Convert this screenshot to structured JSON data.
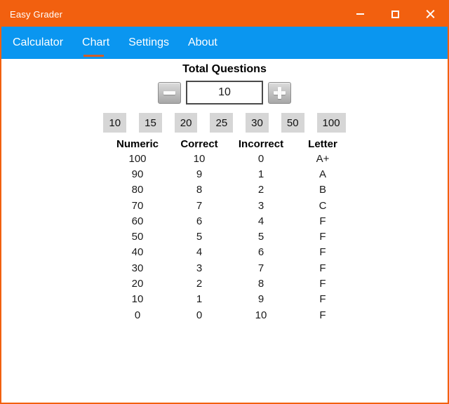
{
  "window": {
    "title": "Easy Grader",
    "controls": {
      "minimize": "minimize",
      "maximize": "maximize",
      "close": "close"
    }
  },
  "colors": {
    "titlebar_bg": "#F2600F",
    "nav_bg": "#0A96F0",
    "tab_underline": "#D25E28",
    "window_border": "#F2600F",
    "preset_button_bg": "#D6D6D6"
  },
  "nav": {
    "tabs": [
      {
        "label": "Calculator",
        "active": false
      },
      {
        "label": "Chart",
        "active": true
      },
      {
        "label": "Settings",
        "active": false
      },
      {
        "label": "About",
        "active": false
      }
    ]
  },
  "main": {
    "section_title": "Total Questions",
    "stepper": {
      "value": "10"
    },
    "quick_options": [
      "10",
      "15",
      "20",
      "25",
      "30",
      "50",
      "100"
    ],
    "grade_table": {
      "headers": [
        "Numeric",
        "Correct",
        "Incorrect",
        "Letter"
      ],
      "rows": [
        [
          "100",
          "10",
          "0",
          "A+"
        ],
        [
          "90",
          "9",
          "1",
          "A"
        ],
        [
          "80",
          "8",
          "2",
          "B"
        ],
        [
          "70",
          "7",
          "3",
          "C"
        ],
        [
          "60",
          "6",
          "4",
          "F"
        ],
        [
          "50",
          "5",
          "5",
          "F"
        ],
        [
          "40",
          "4",
          "6",
          "F"
        ],
        [
          "30",
          "3",
          "7",
          "F"
        ],
        [
          "20",
          "2",
          "8",
          "F"
        ],
        [
          "10",
          "1",
          "9",
          "F"
        ],
        [
          "0",
          "0",
          "10",
          "F"
        ]
      ]
    }
  }
}
